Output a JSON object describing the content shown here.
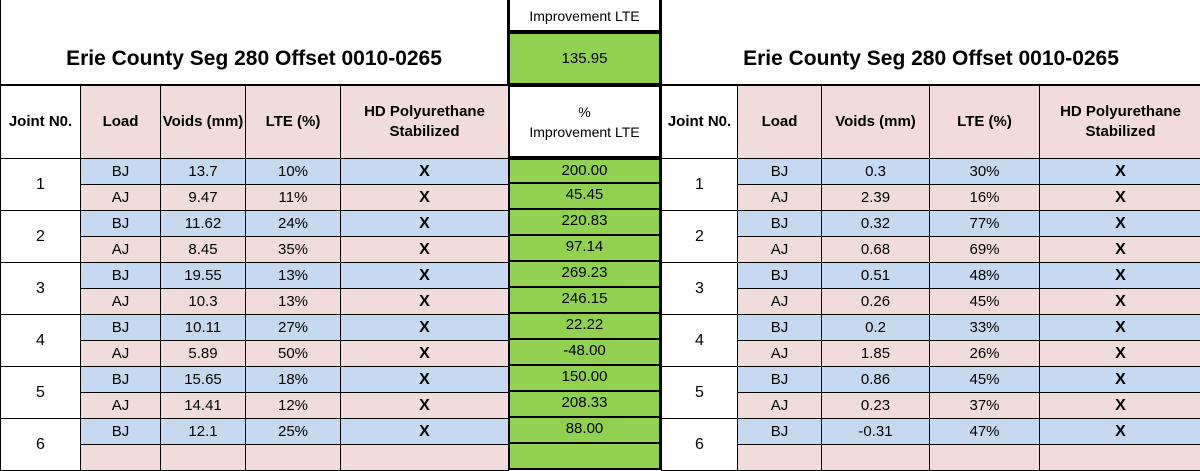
{
  "top_partial_label": "Improvement LTE",
  "left_title": "Erie County Seg 280 Offset 0010-0265",
  "right_title": "Erie County Seg 280 Offset 0010-0265",
  "top_value": "135.95",
  "left_headers": [
    "Joint N0.",
    "Load",
    "Voids (mm)",
    "LTE (%)",
    "HD Polyurethane Stabilized"
  ],
  "middle_header": {
    "line1": "%",
    "line2": "Improvement LTE"
  },
  "right_headers": [
    "Joint N0.",
    "Load",
    "Voids (mm)",
    "LTE (%)",
    "HD Polyurethane Stabilized"
  ],
  "left_rows": [
    {
      "joint": "1",
      "bj": {
        "load": "BJ",
        "voids": "13.7",
        "lte": "10%",
        "hd": "X"
      },
      "aj": {
        "load": "AJ",
        "voids": "9.47",
        "lte": "11%",
        "hd": "X"
      }
    },
    {
      "joint": "2",
      "bj": {
        "load": "BJ",
        "voids": "11.62",
        "lte": "24%",
        "hd": "X"
      },
      "aj": {
        "load": "AJ",
        "voids": "8.45",
        "lte": "35%",
        "hd": "X"
      }
    },
    {
      "joint": "3",
      "bj": {
        "load": "BJ",
        "voids": "19.55",
        "lte": "13%",
        "hd": "X"
      },
      "aj": {
        "load": "AJ",
        "voids": "10.3",
        "lte": "13%",
        "hd": "X"
      }
    },
    {
      "joint": "4",
      "bj": {
        "load": "BJ",
        "voids": "10.11",
        "lte": "27%",
        "hd": "X"
      },
      "aj": {
        "load": "AJ",
        "voids": "5.89",
        "lte": "50%",
        "hd": "X"
      }
    },
    {
      "joint": "5",
      "bj": {
        "load": "BJ",
        "voids": "15.65",
        "lte": "18%",
        "hd": "X"
      },
      "aj": {
        "load": "AJ",
        "voids": "14.41",
        "lte": "12%",
        "hd": "X"
      }
    },
    {
      "joint": "6",
      "bj": {
        "load": "BJ",
        "voids": "12.1",
        "lte": "25%",
        "hd": "X"
      },
      "aj": {
        "load": "",
        "voids": "",
        "lte": "",
        "hd": ""
      }
    }
  ],
  "middle_values": [
    "200.00",
    "45.45",
    "220.83",
    "97.14",
    "269.23",
    "246.15",
    "22.22",
    "-48.00",
    "150.00",
    "208.33",
    "88.00",
    ""
  ],
  "right_rows": [
    {
      "joint": "1",
      "bj": {
        "load": "BJ",
        "voids": "0.3",
        "lte": "30%",
        "hd": "X"
      },
      "aj": {
        "load": "AJ",
        "voids": "2.39",
        "lte": "16%",
        "hd": "X"
      }
    },
    {
      "joint": "2",
      "bj": {
        "load": "BJ",
        "voids": "0.32",
        "lte": "77%",
        "hd": "X"
      },
      "aj": {
        "load": "AJ",
        "voids": "0.68",
        "lte": "69%",
        "hd": "X"
      }
    },
    {
      "joint": "3",
      "bj": {
        "load": "BJ",
        "voids": "0.51",
        "lte": "48%",
        "hd": "X"
      },
      "aj": {
        "load": "AJ",
        "voids": "0.26",
        "lte": "45%",
        "hd": "X"
      }
    },
    {
      "joint": "4",
      "bj": {
        "load": "BJ",
        "voids": "0.2",
        "lte": "33%",
        "hd": "X"
      },
      "aj": {
        "load": "AJ",
        "voids": "1.85",
        "lte": "26%",
        "hd": "X"
      }
    },
    {
      "joint": "5",
      "bj": {
        "load": "BJ",
        "voids": "0.86",
        "lte": "45%",
        "hd": "X"
      },
      "aj": {
        "load": "AJ",
        "voids": "0.23",
        "lte": "37%",
        "hd": "X"
      }
    },
    {
      "joint": "6",
      "bj": {
        "load": "BJ",
        "voids": "-0.31",
        "lte": "47%",
        "hd": "X"
      },
      "aj": {
        "load": "",
        "voids": "",
        "lte": "",
        "hd": ""
      }
    }
  ],
  "colors": {
    "bj_row": "#c5d9f1",
    "aj_row": "#f2dcdb",
    "header_pink": "#f2dcdb",
    "green": "#92d050"
  }
}
